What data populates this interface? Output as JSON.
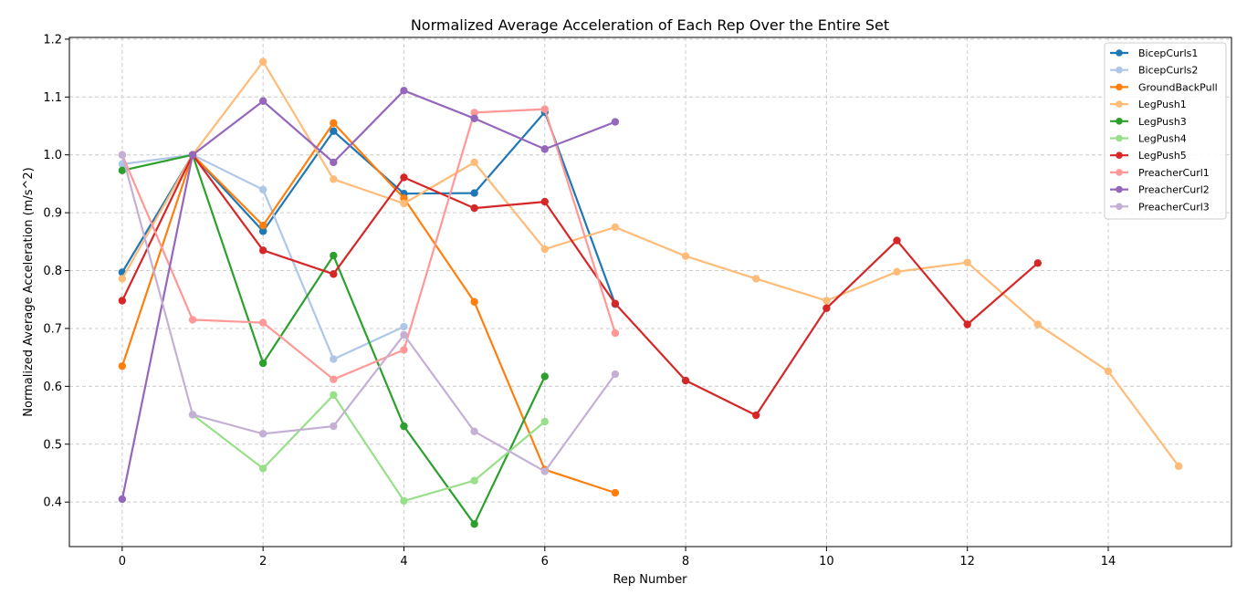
{
  "chart_data": {
    "type": "line",
    "title": "Normalized Average Acceleration of Each Rep Over the Entire Set",
    "xlabel": "Rep Number",
    "ylabel": "Normalized Average Acceleration (m/s^2)",
    "xlim": [
      -0.75,
      15.75
    ],
    "ylim": [
      0.323,
      1.203
    ],
    "xticks": [
      0,
      2,
      4,
      6,
      8,
      10,
      12,
      14
    ],
    "yticks": [
      0.4,
      0.5,
      0.6,
      0.7,
      0.8,
      0.9,
      1.0,
      1.1,
      1.2
    ],
    "ytick_labels": [
      "0.4",
      "0.5",
      "0.6",
      "0.7",
      "0.8",
      "0.9",
      "1.0",
      "1.1",
      "1.2"
    ],
    "grid": true,
    "legend_position": "top-right",
    "series": [
      {
        "name": "BicepCurls1",
        "color": "#1f77b4",
        "x": [
          0,
          1,
          2,
          3,
          4,
          5,
          6,
          7
        ],
        "values": [
          0.797,
          1.0,
          0.868,
          1.041,
          0.933,
          0.934,
          1.074,
          0.742
        ]
      },
      {
        "name": "BicepCurls2",
        "color": "#aec7e8",
        "x": [
          0,
          1,
          2,
          3,
          4
        ],
        "values": [
          0.984,
          1.0,
          0.94,
          0.647,
          0.703
        ]
      },
      {
        "name": "GroundBackPull",
        "color": "#ff7f0e",
        "x": [
          0,
          1,
          2,
          3,
          4,
          5,
          6,
          7
        ],
        "values": [
          0.635,
          1.0,
          0.878,
          1.055,
          0.925,
          0.746,
          0.456,
          0.416
        ]
      },
      {
        "name": "LegPush1",
        "color": "#ffbb78",
        "x": [
          0,
          1,
          2,
          3,
          4,
          5,
          6,
          7,
          8,
          9,
          10,
          11,
          12,
          13,
          14,
          15
        ],
        "values": [
          0.786,
          1.0,
          1.161,
          0.958,
          0.916,
          0.987,
          0.837,
          0.875,
          0.825,
          0.786,
          0.748,
          0.798,
          0.814,
          0.707,
          0.626,
          0.462
        ]
      },
      {
        "name": "LegPush3",
        "color": "#2ca02c",
        "x": [
          0,
          1,
          2,
          3,
          4,
          5,
          6
        ],
        "values": [
          0.973,
          1.0,
          0.64,
          0.826,
          0.531,
          0.362,
          0.617
        ]
      },
      {
        "name": "LegPush4",
        "color": "#98df8a",
        "x": [
          1,
          2,
          3,
          4,
          5,
          6
        ],
        "values": [
          0.551,
          0.458,
          0.585,
          0.402,
          0.437,
          0.539
        ]
      },
      {
        "name": "LegPush5",
        "color": "#d62728",
        "x": [
          0,
          1,
          2,
          3,
          4,
          5,
          6,
          7,
          8,
          9,
          10,
          11,
          12,
          13
        ],
        "values": [
          0.748,
          1.0,
          0.835,
          0.794,
          0.961,
          0.908,
          0.919,
          0.743,
          0.61,
          0.55,
          0.735,
          0.852,
          0.707,
          0.813
        ]
      },
      {
        "name": "PreacherCurl1",
        "color": "#ff9896",
        "x": [
          0,
          1,
          2,
          3,
          4,
          5,
          6,
          7
        ],
        "values": [
          1.0,
          0.715,
          0.71,
          0.612,
          0.663,
          1.073,
          1.079,
          0.692
        ]
      },
      {
        "name": "PreacherCurl2",
        "color": "#9467bd",
        "x": [
          0,
          1,
          2,
          3,
          4,
          5,
          6,
          7
        ],
        "values": [
          0.405,
          1.0,
          1.093,
          0.987,
          1.111,
          1.063,
          1.01,
          1.057
        ]
      },
      {
        "name": "PreacherCurl3",
        "color": "#c5b0d5",
        "x": [
          0,
          1,
          2,
          3,
          4,
          5,
          6,
          7
        ],
        "values": [
          1.0,
          0.551,
          0.518,
          0.531,
          0.689,
          0.522,
          0.453,
          0.621
        ]
      }
    ]
  }
}
